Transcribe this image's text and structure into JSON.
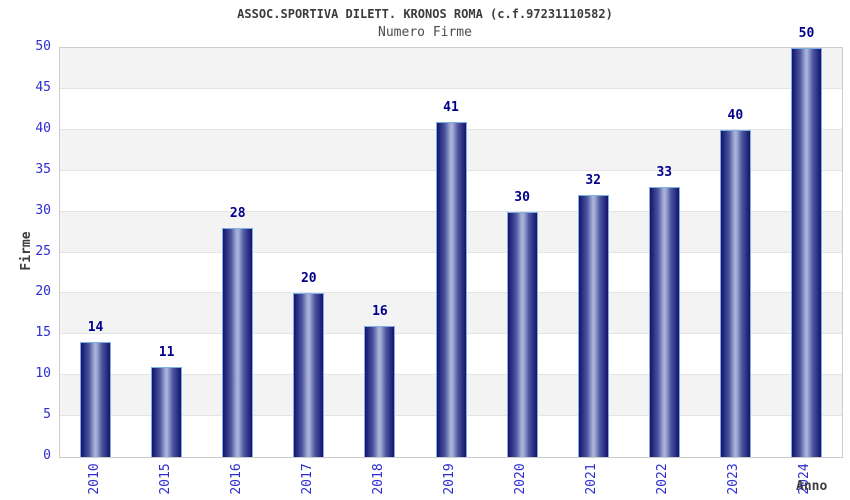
{
  "chart_data": {
    "type": "bar",
    "title": "ASSOC.SPORTIVA DILETT. KRONOS ROMA (c.f.97231110582)",
    "subtitle": "Numero Firme",
    "xlabel": "Anno",
    "ylabel": "Firme",
    "categories": [
      "2010",
      "2015",
      "2016",
      "2017",
      "2018",
      "2019",
      "2020",
      "2021",
      "2022",
      "2023",
      "2024"
    ],
    "values": [
      14,
      11,
      28,
      20,
      16,
      41,
      30,
      32,
      33,
      40,
      50
    ],
    "ylim": [
      0,
      50
    ],
    "ytick_step": 5,
    "yticks": [
      0,
      5,
      10,
      15,
      20,
      25,
      30,
      35,
      40,
      45,
      50
    ],
    "grid": "horizontal-bands-every-5",
    "legend": "none"
  },
  "colors": {
    "bar_dark": "#13136b",
    "bar_mid": "#4d57a0",
    "bar_light": "#a8b0d8",
    "bar_border": "#7db0e4",
    "value_label": "#00008b",
    "tick_label": "#2d2dd0",
    "band_gray": "#f3f3f3",
    "band_white": "#ffffff",
    "gridline": "#e4e4e4",
    "plot_border": "#cccccc",
    "title_color": "#3c3c3c",
    "subtitle_color": "#4d4d4d",
    "axis_label_color": "#3c3c3c"
  }
}
